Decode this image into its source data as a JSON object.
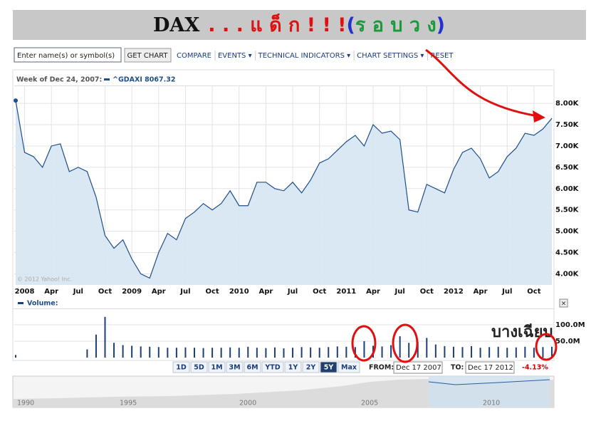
{
  "header": {
    "title_parts": [
      "DAX",
      ". . . แ ด็ ก ! ! !",
      "(",
      "ร อ บ ว ง",
      ")"
    ]
  },
  "toolbar": {
    "input_placeholder": "Enter name(s) or symbol(s)",
    "button": "GET CHART",
    "links": [
      "COMPARE",
      "EVENTS ▾",
      "TECHNICAL INDICATORS ▾",
      "CHART SETTINGS ▾",
      "RESET"
    ]
  },
  "chart_data": [
    {
      "type": "line",
      "subtitle": "Week of Dec 24, 2007:",
      "annotation": "© 2012 Yahoo! Inc.",
      "categories": [
        null,
        "2008",
        null,
        null,
        "Apr",
        null,
        null,
        "Jul",
        null,
        null,
        "Oct",
        null,
        null,
        "2009",
        null,
        null,
        "Apr",
        null,
        null,
        "Jul",
        null,
        null,
        "Oct",
        null,
        null,
        "2010",
        null,
        null,
        "Apr",
        null,
        null,
        "Jul",
        null,
        null,
        "Oct",
        null,
        null,
        "2011",
        null,
        null,
        "Apr",
        null,
        null,
        "Jul",
        null,
        null,
        "Oct",
        null,
        null,
        "2012",
        null,
        null,
        "Apr",
        null,
        null,
        "Jul",
        null,
        null,
        "Oct",
        null,
        null
      ],
      "series": [
        {
          "name": "^GDAXI 8067.32",
          "color": "#1f4e8c",
          "fill": "#d6e6f2",
          "values": [
            8067.32,
            6850,
            6750,
            6500,
            7000,
            7050,
            6400,
            6500,
            6400,
            5800,
            4900,
            4600,
            4800,
            4350,
            4000,
            3900,
            4500,
            4950,
            4800,
            5300,
            5450,
            5650,
            5500,
            5650,
            5950,
            5600,
            5600,
            6150,
            6150,
            6000,
            5950,
            6150,
            5900,
            6200,
            6600,
            6700,
            6900,
            7100,
            7250,
            7000,
            7500,
            7300,
            7350,
            7150,
            5500,
            5450,
            6100,
            6000,
            5900,
            6450,
            6850,
            6950,
            6700,
            6250,
            6400,
            6750,
            6950,
            7300,
            7250,
            7400,
            7650
          ]
        }
      ],
      "ylim": [
        3740,
        8420
      ],
      "yticks": [
        {
          "value": 4000,
          "label": "4.00K"
        },
        {
          "value": 4500,
          "label": "4.50K"
        },
        {
          "value": 5000,
          "label": "5.00K"
        },
        {
          "value": 5500,
          "label": "5.50K"
        },
        {
          "value": 6000,
          "label": "6.00K"
        },
        {
          "value": 6500,
          "label": "6.50K"
        },
        {
          "value": 7000,
          "label": "7.00K"
        },
        {
          "value": 7500,
          "label": "7.50K"
        },
        {
          "value": 8000,
          "label": "8.00K"
        }
      ],
      "grid": true
    },
    {
      "type": "bar",
      "title": "Volume:",
      "color": "#1c3f77",
      "values": [
        8,
        null,
        null,
        null,
        null,
        null,
        null,
        null,
        25,
        70,
        124,
        45,
        38,
        36,
        34,
        33,
        32,
        30,
        30,
        31,
        30,
        29,
        30,
        30,
        31,
        30,
        33,
        30,
        29,
        31,
        28,
        30,
        32,
        31,
        30,
        32,
        34,
        33,
        32,
        50,
        36,
        34,
        38,
        65,
        45,
        48,
        60,
        40,
        35,
        33,
        32,
        35,
        30,
        32,
        33,
        30,
        31,
        33,
        30,
        32,
        33
      ],
      "ylim": [
        0,
        141
      ],
      "yticks": [
        {
          "value": 50,
          "label": "50.0M"
        },
        {
          "value": 100,
          "label": "100.0M"
        }
      ]
    }
  ],
  "range": {
    "buttons": [
      "1D",
      "5D",
      "1M",
      "3M",
      "6M",
      "YTD",
      "1Y",
      "2Y",
      "5Y",
      "Max"
    ],
    "selected": "5Y",
    "from_label": "FROM:",
    "from": "Dec 17 2007",
    "to_label": "TO:",
    "to": "Dec 17 2012",
    "change": "-4.13%"
  },
  "overview": {
    "years": [
      "1990",
      "1995",
      "2000",
      "2005",
      "2010"
    ]
  },
  "annotation": "บางเฉียบ"
}
